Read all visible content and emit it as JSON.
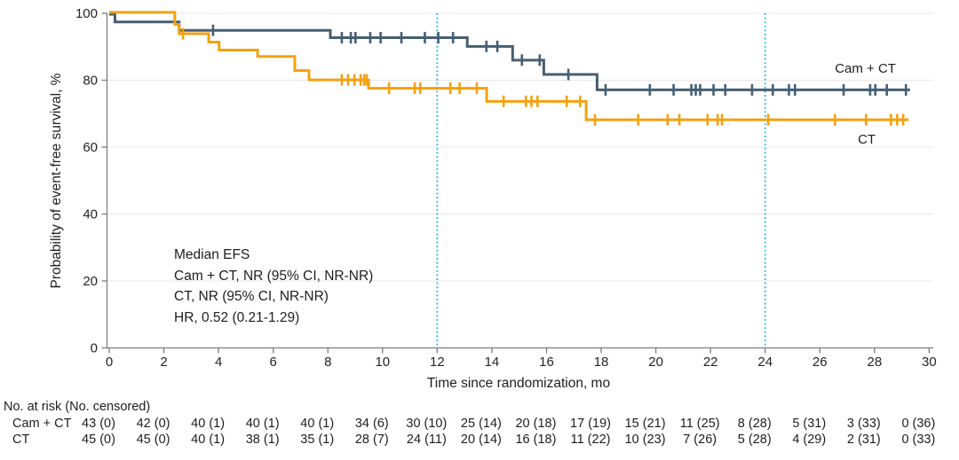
{
  "colors": {
    "series_cam_ct": "#465f73",
    "series_ct": "#f3a111",
    "reference": "#3fbdee",
    "grid": "#e8e8e8",
    "axis": "#7d7d7d",
    "text": "#1e1e1e"
  },
  "chart_data": {
    "type": "line",
    "subtype": "kaplan-meier-step",
    "title": "",
    "xlabel": "Time since randomization, mo",
    "ylabel": "Probability of event-free survival, %",
    "xlim": [
      0,
      30
    ],
    "ylim": [
      0,
      100
    ],
    "xticks": [
      0,
      2,
      4,
      6,
      8,
      10,
      12,
      14,
      16,
      18,
      20,
      22,
      24,
      26,
      28,
      30
    ],
    "yticks": [
      0,
      20,
      40,
      60,
      80,
      100
    ],
    "grid": "horizontal",
    "legend_position": "inline-right",
    "reference_lines_x": [
      12,
      24
    ],
    "annotation": {
      "lines": [
        "Median EFS",
        "Cam + CT, NR (95% CI, NR-NR)",
        "CT, NR (95% CI, NR-NR)",
        "HR, 0.52 (0.21-1.29)"
      ]
    },
    "series": [
      {
        "name": "Cam + CT",
        "color": "#465f73",
        "label_pos": {
          "x": 26.55,
          "y": 83.3
        },
        "steps": [
          [
            0,
            100
          ],
          [
            0.21,
            97.7
          ],
          [
            2.56,
            95.2
          ],
          [
            8.09,
            93.0
          ],
          [
            13.1,
            90.4
          ],
          [
            14.76,
            86.3
          ],
          [
            15.9,
            82.0
          ],
          [
            17.85,
            77.4
          ]
        ],
        "end_x": 29.3,
        "censors": [
          [
            3.8,
            95.2
          ],
          [
            8.51,
            93.0
          ],
          [
            8.84,
            93.0
          ],
          [
            9.01,
            93.0
          ],
          [
            9.55,
            93.0
          ],
          [
            9.93,
            93.0
          ],
          [
            10.69,
            93.0
          ],
          [
            11.55,
            93.0
          ],
          [
            12.04,
            93.0
          ],
          [
            12.58,
            93.0
          ],
          [
            13.8,
            90.4
          ],
          [
            14.2,
            90.4
          ],
          [
            15.1,
            86.3
          ],
          [
            15.75,
            86.3
          ],
          [
            16.8,
            82.0
          ],
          [
            18.16,
            77.4
          ],
          [
            19.78,
            77.4
          ],
          [
            20.65,
            77.4
          ],
          [
            21.3,
            77.4
          ],
          [
            21.46,
            77.4
          ],
          [
            21.62,
            77.4
          ],
          [
            22.11,
            77.4
          ],
          [
            22.54,
            77.4
          ],
          [
            23.52,
            77.4
          ],
          [
            24.28,
            77.4
          ],
          [
            24.87,
            77.4
          ],
          [
            25.09,
            77.4
          ],
          [
            26.87,
            77.4
          ],
          [
            27.84,
            77.4
          ],
          [
            28.03,
            77.4
          ],
          [
            28.45,
            77.4
          ],
          [
            29.15,
            77.4
          ]
        ]
      },
      {
        "name": "CT",
        "color": "#f3a111",
        "label_pos": {
          "x": 27.39,
          "y": 62.1
        },
        "steps": [
          [
            0,
            100
          ],
          [
            2.4,
            96.4
          ],
          [
            2.56,
            93.6
          ],
          [
            3.64,
            91.1
          ],
          [
            4.02,
            88.7
          ],
          [
            5.43,
            86.8
          ],
          [
            6.79,
            82.6
          ],
          [
            7.31,
            79.8
          ],
          [
            9.49,
            77.3
          ],
          [
            13.81,
            73.4
          ],
          [
            17.45,
            67.9
          ]
        ],
        "end_x": 29.25,
        "censors": [
          [
            2.7,
            93.6
          ],
          [
            8.51,
            79.8
          ],
          [
            8.74,
            79.8
          ],
          [
            8.97,
            79.8
          ],
          [
            9.2,
            79.8
          ],
          [
            9.33,
            79.8
          ],
          [
            9.42,
            79.8
          ],
          [
            10.24,
            77.3
          ],
          [
            11.18,
            77.3
          ],
          [
            11.38,
            77.3
          ],
          [
            12.48,
            77.3
          ],
          [
            12.82,
            77.3
          ],
          [
            13.45,
            77.3
          ],
          [
            14.43,
            73.4
          ],
          [
            15.25,
            73.4
          ],
          [
            15.45,
            73.4
          ],
          [
            15.67,
            73.4
          ],
          [
            16.74,
            73.4
          ],
          [
            17.23,
            73.4
          ],
          [
            17.77,
            67.9
          ],
          [
            19.35,
            67.9
          ],
          [
            20.43,
            67.9
          ],
          [
            20.86,
            67.9
          ],
          [
            21.89,
            67.9
          ],
          [
            22.26,
            67.9
          ],
          [
            22.42,
            67.9
          ],
          [
            24.11,
            67.9
          ],
          [
            26.55,
            67.9
          ],
          [
            27.69,
            67.9
          ],
          [
            28.6,
            67.9
          ],
          [
            28.83,
            67.9
          ],
          [
            29.05,
            67.9
          ]
        ]
      }
    ]
  },
  "risk_table": {
    "title": "No. at risk (No. censored)",
    "time_points": [
      0,
      2,
      4,
      6,
      8,
      10,
      12,
      14,
      16,
      18,
      20,
      22,
      24,
      26,
      28,
      30
    ],
    "rows": [
      {
        "label": "Cam + CT",
        "values": [
          "43 (0)",
          "42 (0)",
          "40 (1)",
          "40 (1)",
          "40 (1)",
          "34 (6)",
          "30 (10)",
          "25 (14)",
          "20 (18)",
          "17 (19)",
          "15 (21)",
          "11 (25)",
          "8 (28)",
          "5 (31)",
          "3 (33)",
          "0 (36)"
        ]
      },
      {
        "label": "CT",
        "values": [
          "45 (0)",
          "45 (0)",
          "40 (1)",
          "38 (1)",
          "35 (1)",
          "28 (7)",
          "24 (11)",
          "20 (14)",
          "16 (18)",
          "11 (22)",
          "10 (23)",
          "7 (26)",
          "5 (28)",
          "4 (29)",
          "2 (31)",
          "0 (33)"
        ]
      }
    ]
  }
}
